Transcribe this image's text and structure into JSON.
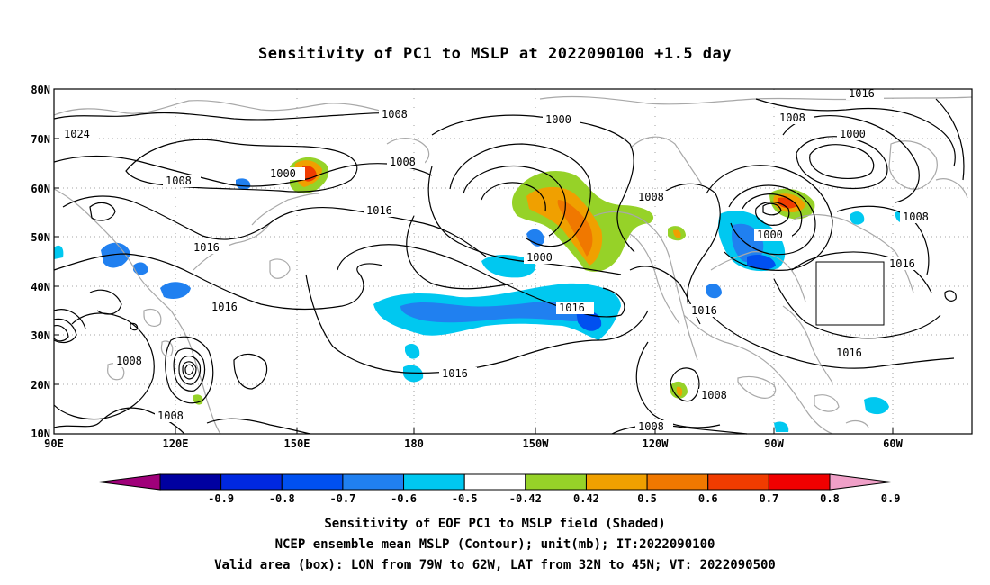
{
  "title": "Sensitivity of PC1 to MSLP at 2022090100 +1.5 day",
  "lat_labels": [
    "80N",
    "70N",
    "60N",
    "50N",
    "40N",
    "30N",
    "20N",
    "10N"
  ],
  "lon_labels": [
    "90E",
    "120E",
    "150E",
    "180",
    "150W",
    "120W",
    "90W",
    "60W"
  ],
  "contour_labels": [
    "1024",
    "1008",
    "1000",
    "1016"
  ],
  "colorbar": {
    "ticks": [
      "-0.9",
      "-0.8",
      "-0.7",
      "-0.6",
      "-0.5",
      "-0.42",
      "0.42",
      "0.5",
      "0.6",
      "0.7",
      "0.8",
      "0.9"
    ],
    "colors": [
      "#a0007a",
      "#0000a0",
      "#0028e0",
      "#0050f0",
      "#2080f0",
      "#00c8f0",
      "#ffffff",
      "#96d228",
      "#f0a000",
      "#f07800",
      "#f03c00",
      "#f00000",
      "#f0a0c8"
    ]
  },
  "footer": {
    "line1": "Sensitivity of EOF PC1 to MSLP field (Shaded)",
    "line2": "NCEP ensemble mean MSLP (Contour); unit(mb); IT:2022090100",
    "line3": "Valid area (box): LON from 79W to 62W, LAT from 32N to 45N; VT: 2022090500"
  }
}
